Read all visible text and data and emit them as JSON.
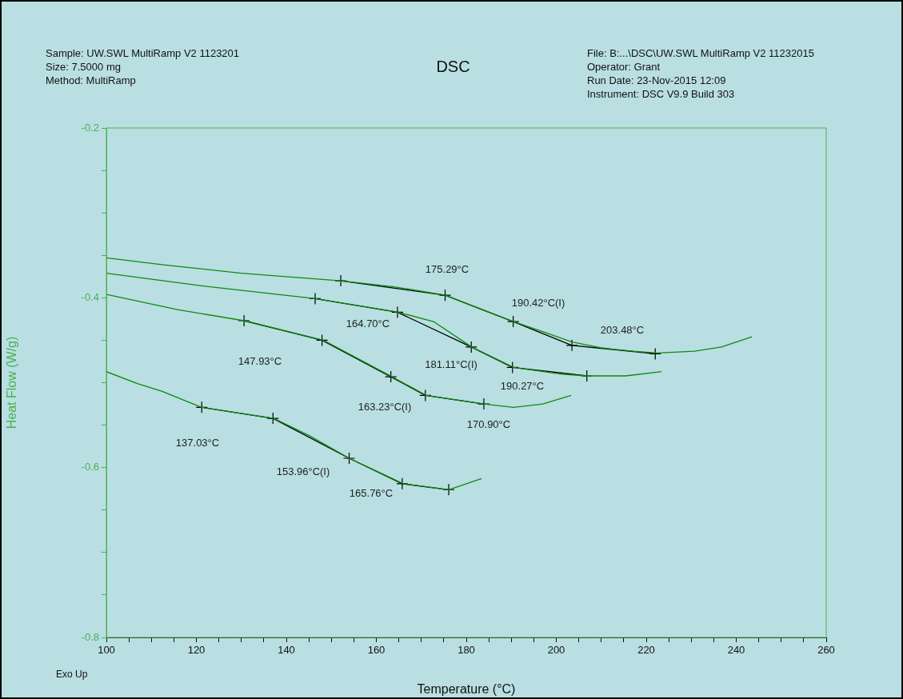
{
  "chart_data": {
    "type": "line",
    "title": "DSC",
    "xlabel": "Temperature (°C)",
    "ylabel": "Heat Flow (W/g)",
    "xlim": [
      100,
      260
    ],
    "ylim": [
      -0.8,
      -0.2
    ],
    "xticks": [
      100,
      {
        "value": 105,
        "label": null
      },
      {
        "value": 110,
        "label": null
      },
      {
        "value": 115,
        "label": null
      },
      120,
      {
        "value": 125,
        "label": null
      },
      {
        "value": 130,
        "label": null
      },
      {
        "value": 135,
        "label": null
      },
      140,
      {
        "value": 145,
        "label": null
      },
      {
        "value": 150,
        "label": null
      },
      {
        "value": 155,
        "label": null
      },
      160,
      {
        "value": 165,
        "label": null
      },
      {
        "value": 170,
        "label": null
      },
      {
        "value": 175,
        "label": null
      },
      180,
      {
        "value": 185,
        "label": null
      },
      {
        "value": 190,
        "label": null
      },
      {
        "value": 195,
        "label": null
      },
      200,
      {
        "value": 205,
        "label": null
      },
      {
        "value": 210,
        "label": null
      },
      {
        "value": 215,
        "label": null
      },
      220,
      {
        "value": 225,
        "label": null
      },
      {
        "value": 230,
        "label": null
      },
      {
        "value": 235,
        "label": null
      },
      240,
      {
        "value": 245,
        "label": null
      },
      {
        "value": 250,
        "label": null
      },
      {
        "value": 255,
        "label": null
      },
      260
    ],
    "yticks": [
      -0.8,
      {
        "value": -0.75,
        "label": null
      },
      {
        "value": -0.7,
        "label": null
      },
      {
        "value": -0.65,
        "label": null
      },
      -0.6,
      {
        "value": -0.55,
        "label": null
      },
      {
        "value": -0.5,
        "label": null
      },
      {
        "value": -0.45,
        "label": null
      },
      -0.4,
      {
        "value": -0.35,
        "label": null
      },
      {
        "value": -0.3,
        "label": null
      },
      {
        "value": -0.25,
        "label": null
      },
      -0.2
    ],
    "grid": false,
    "legend": false,
    "series": [
      {
        "color": "#0e8a0e",
        "marker": "none",
        "x": [
          100,
          112.3,
          130.0,
          152.1,
          164.0,
          175.4,
          182.5,
          190.5,
          197.6,
          203.5,
          210.0,
          217.2,
          222.5,
          230.7,
          236.7,
          243.5
        ],
        "values": [
          -0.353,
          -0.361,
          -0.371,
          -0.38,
          -0.387,
          -0.397,
          -0.412,
          -0.428,
          -0.441,
          -0.452,
          -0.459,
          -0.463,
          -0.465,
          -0.463,
          -0.458,
          -0.446
        ]
      },
      {
        "color": "#0e8a0e",
        "marker": "none",
        "x": [
          100,
          121.2,
          146.4,
          164.9,
          172.7,
          181.2,
          190.5,
          201.2,
          206.8,
          215.4,
          223.4
        ],
        "values": [
          -0.371,
          -0.386,
          -0.401,
          -0.417,
          -0.428,
          -0.458,
          -0.482,
          -0.49,
          -0.492,
          -0.492,
          -0.487
        ]
      },
      {
        "color": "#0e8a0e",
        "marker": "none",
        "x": [
          100,
          115.8,
          130.6,
          148.2,
          163.5,
          171.1,
          183.9,
          190.5,
          197.0,
          203.3
        ],
        "values": [
          -0.396,
          -0.414,
          -0.427,
          -0.45,
          -0.493,
          -0.515,
          -0.525,
          -0.529,
          -0.525,
          -0.515
        ]
      },
      {
        "color": "#0e8a0e",
        "marker": "none",
        "x": [
          100,
          106.9,
          112.3,
          121.2,
          137.2,
          145.0,
          154.0,
          166.0,
          176.1,
          183.4
        ],
        "values": [
          -0.487,
          -0.501,
          -0.51,
          -0.529,
          -0.542,
          -0.562,
          -0.589,
          -0.619,
          -0.626,
          -0.613
        ]
      },
      {
        "color": "#000000",
        "marker": "cross",
        "x": [
          152.1,
          175.29,
          190.42,
          203.48,
          222.0
        ],
        "values": [
          -0.38,
          -0.397,
          -0.428,
          -0.456,
          -0.466
        ]
      },
      {
        "color": "#000000",
        "marker": "cross",
        "x": [
          146.4,
          164.7,
          181.11,
          190.27,
          206.8
        ],
        "values": [
          -0.401,
          -0.417,
          -0.458,
          -0.482,
          -0.492
        ]
      },
      {
        "color": "#000000",
        "marker": "cross",
        "x": [
          130.6,
          147.93,
          163.23,
          170.9,
          183.9
        ],
        "values": [
          -0.427,
          -0.45,
          -0.493,
          -0.515,
          -0.525
        ]
      },
      {
        "color": "#000000",
        "marker": "cross",
        "x": [
          121.2,
          137.03,
          153.96,
          165.76,
          176.1
        ],
        "values": [
          -0.529,
          -0.542,
          -0.589,
          -0.619,
          -0.626
        ]
      }
    ],
    "annotations": [
      "Sample: UW.SWL MultiRamp V2 1123201",
      "Size:  7.5000 mg",
      "Method: MultiRamp",
      "File: B:...\\DSC\\UW.SWL MultiRamp V2 11232015",
      "Operator: Grant",
      "Run Date: 23-Nov-2015 12:09",
      "Instrument: DSC V9.9 Build 303",
      "Exo Up",
      "175.29°C",
      "190.42°C(I)",
      "203.48°C",
      "164.70°C",
      "181.11°C(I)",
      "190.27°C",
      "147.93°C",
      "163.23°C(I)",
      "170.90°C",
      "137.03°C",
      "153.96°C(I)",
      "165.76°C"
    ]
  }
}
